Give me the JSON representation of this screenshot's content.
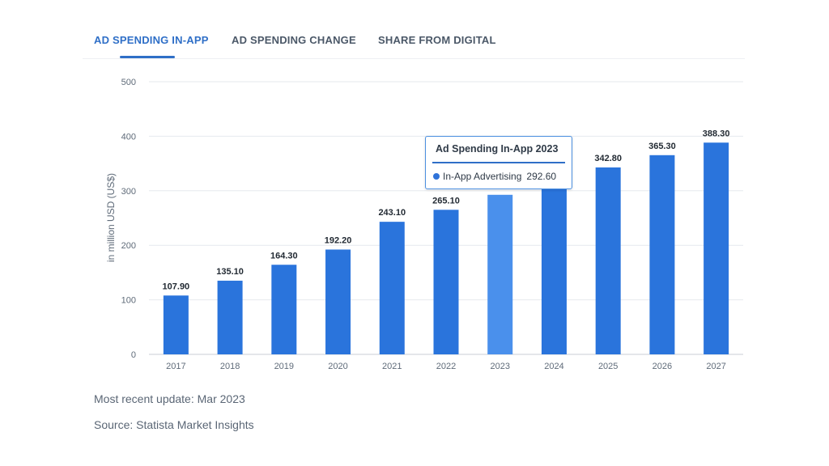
{
  "tabs": [
    {
      "label": "AD SPENDING IN-APP",
      "active": true
    },
    {
      "label": "AD SPENDING CHANGE",
      "active": false
    },
    {
      "label": "SHARE FROM DIGITAL",
      "active": false
    }
  ],
  "colors": {
    "bar": "#2a74dc",
    "bar_highlight": "#4a90ec",
    "accent": "#2f6fc7",
    "grid": "#e6e9ee",
    "axis": "#c9ced6",
    "tick_text": "#5f6b79",
    "label_text": "#222a33"
  },
  "chart_data": {
    "type": "bar",
    "categories": [
      "2017",
      "2018",
      "2019",
      "2020",
      "2021",
      "2022",
      "2023",
      "2024",
      "2025",
      "2026",
      "2027"
    ],
    "values": [
      107.9,
      135.1,
      164.3,
      192.2,
      243.1,
      265.1,
      292.6,
      317.9,
      342.8,
      365.3,
      388.3
    ],
    "data_labels": [
      "107.90",
      "135.10",
      "164.30",
      "192.20",
      "243.10",
      "265.10",
      "",
      "",
      "342.80",
      "365.30",
      "388.30"
    ],
    "highlight_index": 6,
    "ylabel": "in million USD (US$)",
    "xlabel": "",
    "yticks": [
      0,
      100,
      200,
      300,
      400,
      500
    ],
    "ylim": [
      0,
      500
    ],
    "grid": true
  },
  "tooltip": {
    "title": "Ad Spending In-App 2023",
    "series": "In-App Advertising",
    "value": "292.60"
  },
  "footer": {
    "update": "Most recent update: Mar 2023",
    "source": "Source: Statista Market Insights"
  }
}
